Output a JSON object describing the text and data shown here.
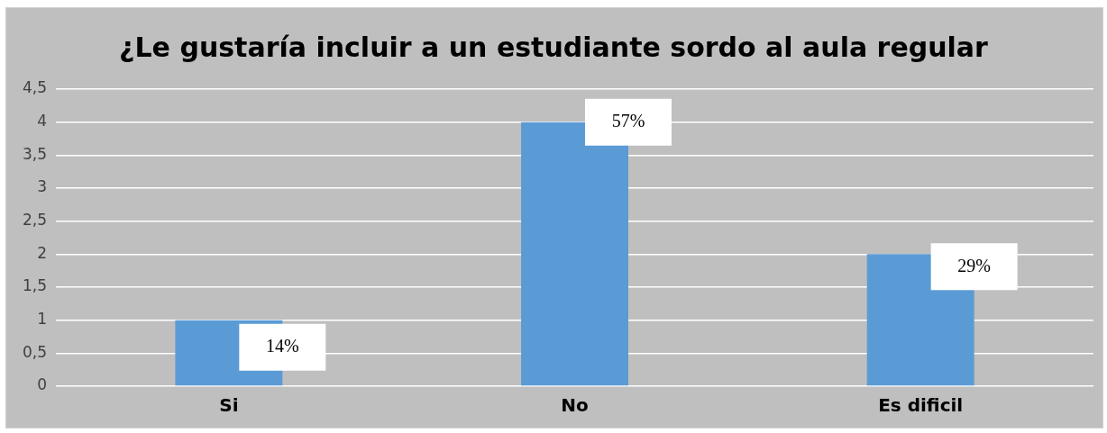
{
  "chart_data": {
    "type": "bar",
    "title": "¿Le gustaría incluir a un estudiante sordo al aula regular",
    "categories": [
      "Si",
      "No",
      "Es dificil"
    ],
    "values": [
      1,
      4,
      2
    ],
    "color": "#5b9bd5",
    "annotations": [
      {
        "text": "14%",
        "x": "Si",
        "y": 1
      },
      {
        "text": "57%",
        "x": "No",
        "y": 4
      },
      {
        "text": "29%",
        "x": "Es dificil",
        "y": 2
      }
    ],
    "ylim": [
      0,
      4.5
    ],
    "yticks": [
      0,
      {
        "value": 0.5,
        "label": "0,5"
      },
      1,
      {
        "value": 1.5,
        "label": "1,5"
      },
      2,
      {
        "value": 2.5,
        "label": "2,5"
      },
      3,
      {
        "value": 3.5,
        "label": "3,5"
      },
      4,
      {
        "value": 4.5,
        "label": "4,5"
      }
    ],
    "grid": "y"
  }
}
